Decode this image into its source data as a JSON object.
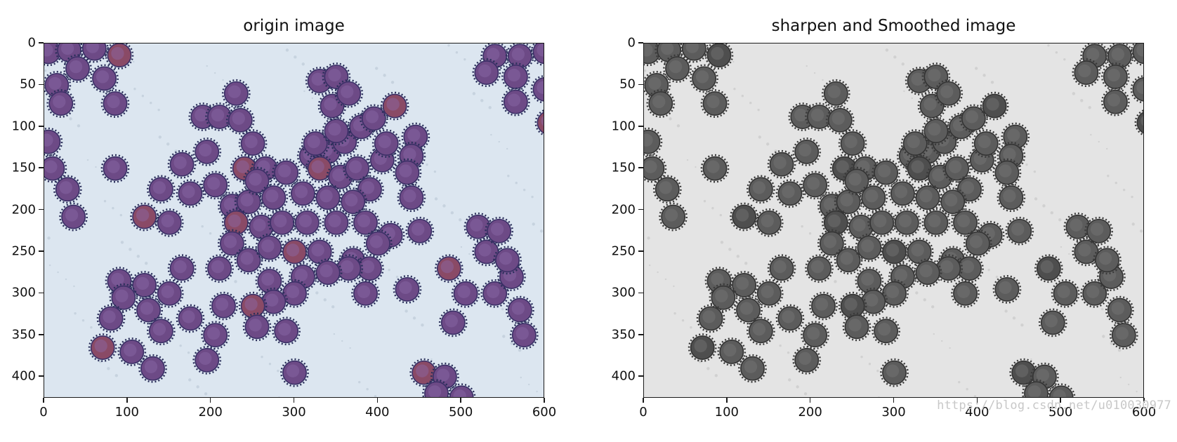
{
  "panels": [
    {
      "title": "origin image",
      "mode": "color",
      "x_ticks": [
        "0",
        "100",
        "200",
        "300",
        "400",
        "500",
        "600"
      ],
      "y_ticks": [
        "0",
        "50",
        "100",
        "150",
        "200",
        "250",
        "300",
        "350",
        "400"
      ],
      "xlim": [
        0,
        600
      ],
      "ylim": [
        426,
        0
      ]
    },
    {
      "title": "sharpen and Smoothed image",
      "mode": "gray",
      "x_ticks": [
        "0",
        "100",
        "200",
        "300",
        "400",
        "500",
        "600"
      ],
      "y_ticks": [
        "0",
        "50",
        "100",
        "150",
        "200",
        "250",
        "300",
        "350",
        "400"
      ],
      "xlim": [
        0,
        600
      ],
      "ylim": [
        426,
        0
      ]
    }
  ],
  "cells": [
    [
      5,
      10
    ],
    [
      30,
      8
    ],
    [
      60,
      6
    ],
    [
      90,
      14
    ],
    [
      40,
      30
    ],
    [
      15,
      50
    ],
    [
      72,
      42
    ],
    [
      20,
      72
    ],
    [
      85,
      72
    ],
    [
      5,
      118
    ],
    [
      10,
      150
    ],
    [
      28,
      175
    ],
    [
      35,
      208
    ],
    [
      85,
      150
    ],
    [
      120,
      208
    ],
    [
      150,
      215
    ],
    [
      165,
      145
    ],
    [
      140,
      175
    ],
    [
      175,
      180
    ],
    [
      195,
      130
    ],
    [
      205,
      170
    ],
    [
      190,
      88
    ],
    [
      210,
      88
    ],
    [
      230,
      60
    ],
    [
      235,
      92
    ],
    [
      240,
      150
    ],
    [
      225,
      195
    ],
    [
      245,
      190
    ],
    [
      250,
      120
    ],
    [
      265,
      150
    ],
    [
      255,
      165
    ],
    [
      275,
      185
    ],
    [
      290,
      155
    ],
    [
      310,
      180
    ],
    [
      320,
      135
    ],
    [
      340,
      130
    ],
    [
      330,
      150
    ],
    [
      355,
      160
    ],
    [
      375,
      150
    ],
    [
      390,
      175
    ],
    [
      405,
      140
    ],
    [
      340,
      185
    ],
    [
      370,
      190
    ],
    [
      360,
      118
    ],
    [
      380,
      100
    ],
    [
      395,
      90
    ],
    [
      410,
      120
    ],
    [
      420,
      75
    ],
    [
      445,
      112
    ],
    [
      440,
      135
    ],
    [
      435,
      155
    ],
    [
      440,
      185
    ],
    [
      325,
      120
    ],
    [
      350,
      105
    ],
    [
      345,
      75
    ],
    [
      330,
      45
    ],
    [
      350,
      40
    ],
    [
      365,
      60
    ],
    [
      230,
      215
    ],
    [
      260,
      220
    ],
    [
      285,
      215
    ],
    [
      315,
      215
    ],
    [
      350,
      215
    ],
    [
      385,
      215
    ],
    [
      415,
      230
    ],
    [
      450,
      225
    ],
    [
      225,
      240
    ],
    [
      245,
      260
    ],
    [
      270,
      245
    ],
    [
      300,
      250
    ],
    [
      330,
      250
    ],
    [
      370,
      260
    ],
    [
      400,
      240
    ],
    [
      390,
      270
    ],
    [
      365,
      270
    ],
    [
      340,
      275
    ],
    [
      310,
      280
    ],
    [
      270,
      285
    ],
    [
      300,
      300
    ],
    [
      275,
      310
    ],
    [
      250,
      315
    ],
    [
      215,
      315
    ],
    [
      210,
      270
    ],
    [
      165,
      270
    ],
    [
      150,
      300
    ],
    [
      120,
      290
    ],
    [
      90,
      285
    ],
    [
      95,
      305
    ],
    [
      125,
      320
    ],
    [
      140,
      345
    ],
    [
      80,
      330
    ],
    [
      70,
      365
    ],
    [
      105,
      370
    ],
    [
      130,
      390
    ],
    [
      175,
      330
    ],
    [
      205,
      350
    ],
    [
      195,
      380
    ],
    [
      255,
      340
    ],
    [
      290,
      345
    ],
    [
      300,
      395
    ],
    [
      385,
      300
    ],
    [
      435,
      295
    ],
    [
      485,
      270
    ],
    [
      505,
      300
    ],
    [
      540,
      300
    ],
    [
      560,
      280
    ],
    [
      570,
      320
    ],
    [
      575,
      350
    ],
    [
      530,
      250
    ],
    [
      520,
      220
    ],
    [
      545,
      225
    ],
    [
      555,
      260
    ],
    [
      490,
      335
    ],
    [
      455,
      395
    ],
    [
      480,
      400
    ],
    [
      470,
      420
    ],
    [
      500,
      425
    ],
    [
      540,
      15
    ],
    [
      570,
      15
    ],
    [
      600,
      10
    ],
    [
      530,
      35
    ],
    [
      565,
      40
    ],
    [
      565,
      70
    ],
    [
      600,
      55
    ],
    [
      605,
      95
    ]
  ],
  "annotations": {
    "watermark": "https://blog.csdn.net/u010030977"
  }
}
